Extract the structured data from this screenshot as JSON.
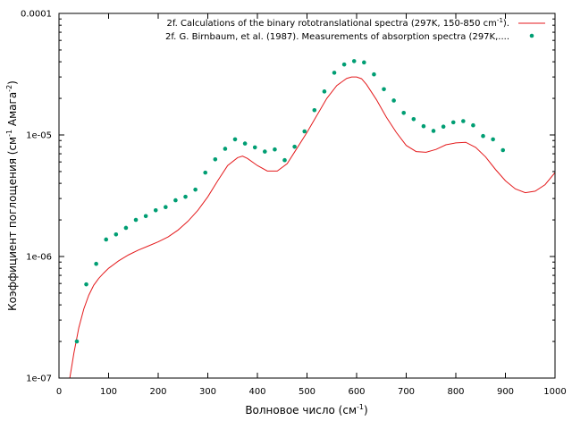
{
  "chart_data": {
    "type": "line",
    "title": "",
    "xlabel": "Волновое число (см",
    "xlabel_sup": "-1",
    "xlabel_tail": ")",
    "ylabel": "Коэффициент поглощения (см",
    "ylabel_sup1": "-1",
    "ylabel_mid": " Амага",
    "ylabel_sup2": "-2",
    "ylabel_tail": ")",
    "xlim": [
      0,
      1000
    ],
    "ylim": [
      1e-07,
      0.0001
    ],
    "yscale": "log",
    "grid": false,
    "legend_position": "top-right",
    "x_ticks": [
      0,
      100,
      200,
      300,
      400,
      500,
      600,
      700,
      800,
      900,
      1000
    ],
    "x_tick_labels": [
      "0",
      "100",
      "200",
      "300",
      "400",
      "500",
      "600",
      "700",
      "800",
      "900",
      "1000"
    ],
    "y_ticks": [
      1e-07,
      1e-06,
      1e-05,
      0.0001
    ],
    "y_tick_labels": [
      "1e-07",
      "1e-06",
      "1e-05",
      "0.0001"
    ],
    "series": [
      {
        "name": "2f. Calculations of the binary rototranslational spectra  (297K, 150-850 cm",
        "name_sup": "-1",
        "name_tail": ").",
        "style": "line",
        "color": "#e41a1c",
        "x": [
          20,
          30,
          40,
          50,
          60,
          70,
          80,
          90,
          100,
          120,
          140,
          160,
          180,
          200,
          220,
          240,
          260,
          280,
          300,
          320,
          340,
          360,
          370,
          380,
          400,
          420,
          440,
          460,
          480,
          500,
          520,
          540,
          560,
          580,
          590,
          600,
          610,
          620,
          640,
          660,
          680,
          700,
          720,
          740,
          760,
          780,
          800,
          820,
          840,
          860,
          880,
          900,
          920,
          940,
          960,
          980,
          1000
        ],
        "y": [
          9e-08,
          1.6e-07,
          2.6e-07,
          3.7e-07,
          4.8e-07,
          5.8e-07,
          6.6e-07,
          7.3e-07,
          8e-07,
          9.2e-07,
          1.03e-06,
          1.13e-06,
          1.22e-06,
          1.32e-06,
          1.45e-06,
          1.65e-06,
          1.95e-06,
          2.4e-06,
          3.1e-06,
          4.2e-06,
          5.6e-06,
          6.5e-06,
          6.7e-06,
          6.4e-06,
          5.6e-06,
          5.05e-06,
          5.05e-06,
          5.8e-06,
          7.8e-06,
          1.05e-05,
          1.45e-05,
          2e-05,
          2.55e-05,
          2.92e-05,
          3e-05,
          3e-05,
          2.9e-05,
          2.6e-05,
          1.95e-05,
          1.4e-05,
          1.05e-05,
          8.2e-06,
          7.3e-06,
          7.2e-06,
          7.6e-06,
          8.3e-06,
          8.6e-06,
          8.7e-06,
          7.9e-06,
          6.6e-06,
          5.2e-06,
          4.2e-06,
          3.6e-06,
          3.35e-06,
          3.45e-06,
          3.9e-06,
          4.9e-06
        ]
      },
      {
        "name": "2f. G. Birnbaum, et al. (1987). Measurements of absorption spectra (297K,....",
        "style": "points",
        "color": "#009e73",
        "x": [
          36,
          55,
          75,
          95,
          115,
          135,
          155,
          175,
          195,
          215,
          235,
          255,
          275,
          295,
          315,
          335,
          355,
          375,
          395,
          415,
          435,
          455,
          475,
          495,
          515,
          535,
          555,
          575,
          595,
          615,
          635,
          655,
          675,
          695,
          715,
          735,
          755,
          775,
          795,
          815,
          835,
          855,
          875,
          895
        ],
        "y": [
          2e-07,
          5.9e-07,
          8.7e-07,
          1.38e-06,
          1.52e-06,
          1.72e-06,
          2e-06,
          2.15e-06,
          2.4e-06,
          2.55e-06,
          2.9e-06,
          3.1e-06,
          3.55e-06,
          4.9e-06,
          6.3e-06,
          7.7e-06,
          9.2e-06,
          8.5e-06,
          7.9e-06,
          7.3e-06,
          7.6e-06,
          6.2e-06,
          8e-06,
          1.07e-05,
          1.6e-05,
          2.28e-05,
          3.25e-05,
          3.8e-05,
          4.05e-05,
          3.95e-05,
          3.15e-05,
          2.38e-05,
          1.92e-05,
          1.52e-05,
          1.35e-05,
          1.18e-05,
          1.08e-05,
          1.17e-05,
          1.27e-05,
          1.3e-05,
          1.2e-05,
          9.8e-06,
          9.2e-06,
          7.5e-06
        ]
      }
    ]
  }
}
